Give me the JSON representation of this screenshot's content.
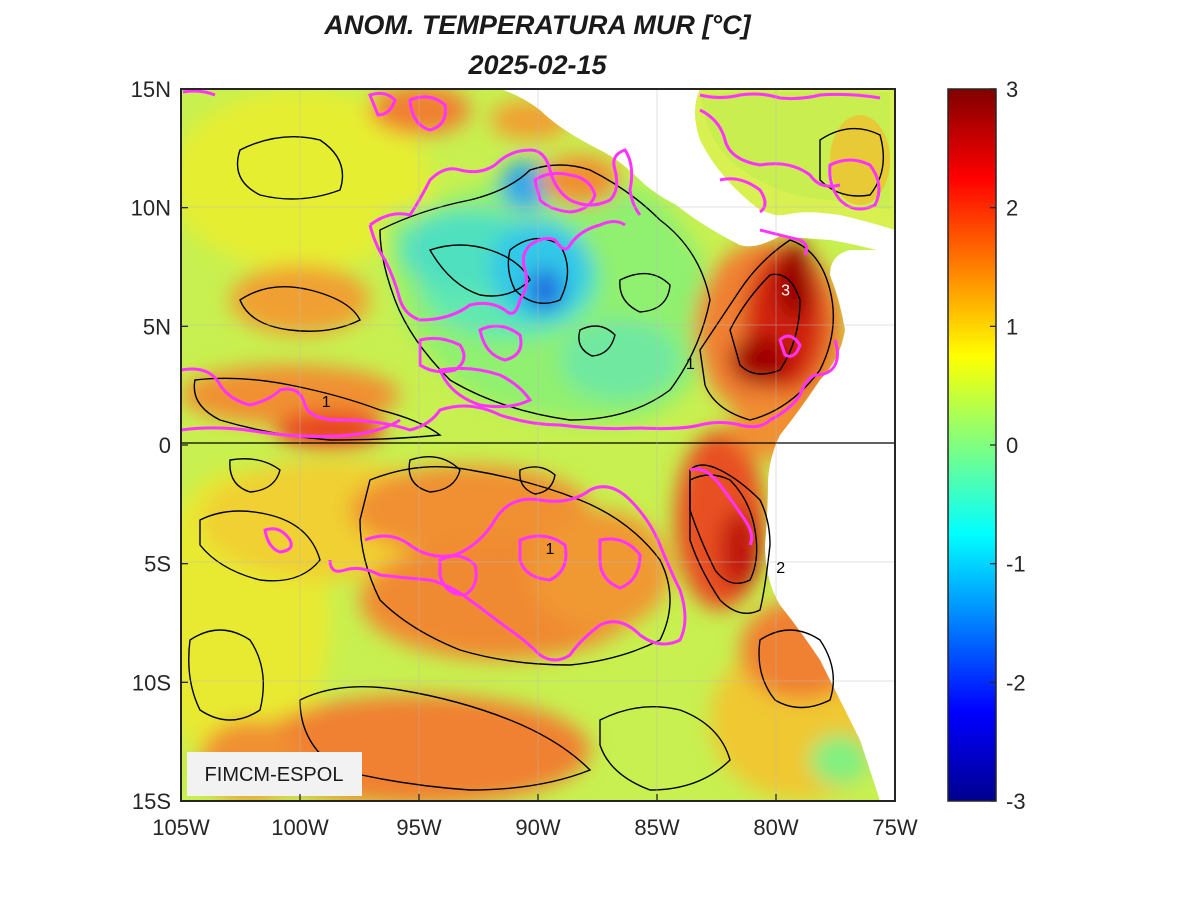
{
  "title": {
    "line1": "ANOM. TEMPERATURA MUR [°C]",
    "line2": "2025-02-15"
  },
  "credit": "FIMCM-ESPOL",
  "map": {
    "lon_ticks": [
      "105W",
      "100W",
      "95W",
      "90W",
      "85W",
      "80W",
      "75W"
    ],
    "lat_ticks": [
      "15N",
      "10N",
      "5N",
      "0",
      "5S",
      "10S",
      "15S"
    ],
    "lon_range": [
      -105,
      -75
    ],
    "lat_range": [
      -15,
      15
    ],
    "contour_labels": [
      {
        "text": "3",
        "lon": -79.6,
        "lat": 6.3,
        "color": "#ffffff"
      },
      {
        "text": "1",
        "lon": -98.9,
        "lat": 1.6,
        "color": "#000000"
      },
      {
        "text": "1",
        "lon": -83.6,
        "lat": 3.2,
        "color": "#000000"
      },
      {
        "text": "1",
        "lon": -89.5,
        "lat": -4.6,
        "color": "#000000"
      },
      {
        "text": "2",
        "lon": -79.8,
        "lat": -5.4,
        "color": "#000000"
      }
    ]
  },
  "colorbar": {
    "ticks": [
      "3",
      "2",
      "1",
      "0",
      "-1",
      "-2",
      "-3"
    ],
    "range": [
      -3,
      3
    ],
    "colormap": "jet"
  },
  "colors": {
    "land": "#ffffff",
    "magenta_contour": "#ff33ff",
    "contour": "#000000",
    "colormap_stops": [
      "#00008f",
      "#0000ff",
      "#00ffff",
      "#80ff80",
      "#ffff00",
      "#ff8000",
      "#ff0000",
      "#800000"
    ]
  }
}
